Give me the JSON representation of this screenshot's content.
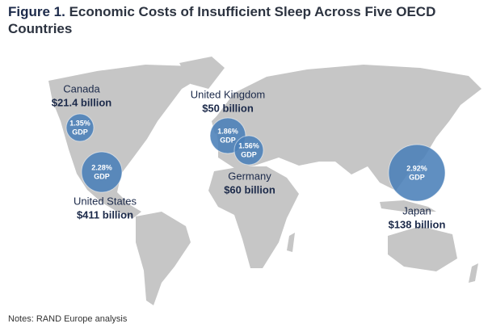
{
  "title_label": "Figure 1.",
  "title": "Economic Costs of Insufficient Sleep Across Five OECD Countries",
  "gdp_unit": "GDP",
  "countries": [
    {
      "name": "Canada",
      "cost": "$21.4 billion",
      "gdp": "1.35%"
    },
    {
      "name": "United States",
      "cost": "$411 billion",
      "gdp": "2.28%"
    },
    {
      "name": "United Kingdom",
      "cost": "$50 billion",
      "gdp": "1.86%"
    },
    {
      "name": "Germany",
      "cost": "$60 billion",
      "gdp": "1.56%"
    },
    {
      "name": "Japan",
      "cost": "$138 billion",
      "gdp": "2.92%"
    }
  ],
  "notes": "Notes: RAND Europe analysis"
}
